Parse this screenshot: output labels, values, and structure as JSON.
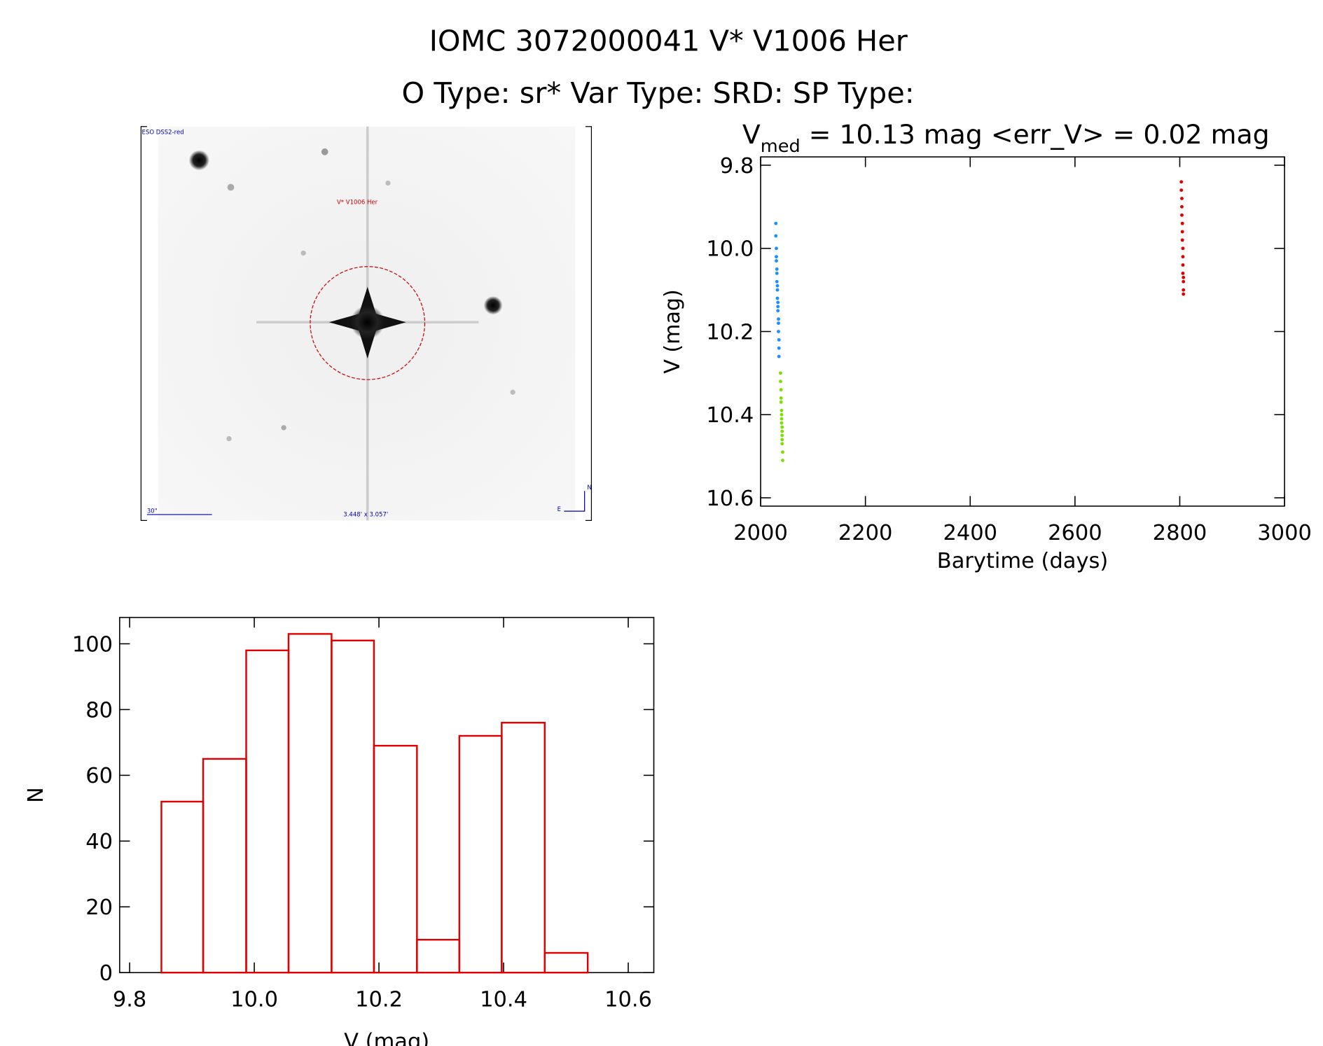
{
  "title": "IOMC 3072000041    V* V1006 Her",
  "subtitle": "O Type: sr*  Var Type: SRD:  SP Type:",
  "finder_chart": {
    "survey": "ESO DSS2-red",
    "target": "V* V1006 Her",
    "scale": "30\"",
    "field": "3.448' x 3.057'",
    "north": "N",
    "east": "E"
  },
  "chart_data": [
    {
      "type": "scatter",
      "title_main": "V",
      "title_sub": "med",
      "title_rest": " = 10.13 mag <err_V> = 0.02 mag",
      "xlabel": "Barytime (days)",
      "ylabel": "V (mag)",
      "xlim": [
        2000,
        3000
      ],
      "ylim": [
        10.62,
        9.78
      ],
      "xticks": [
        2000,
        2200,
        2400,
        2600,
        2800,
        3000
      ],
      "yticks": [
        9.8,
        {
          "value": 10,
          "label": "10.0"
        },
        10.2,
        10.4,
        10.6
      ],
      "series": [
        {
          "color": "#1e8fff",
          "x": [
            2029,
            2029,
            2030,
            2030,
            2030,
            2031,
            2031,
            2031,
            2032,
            2032,
            2032,
            2033,
            2033,
            2033,
            2034,
            2034,
            2034,
            2035,
            2035,
            2035
          ],
          "values": [
            9.94,
            9.97,
            10.0,
            10.02,
            10.03,
            10.05,
            10.06,
            10.08,
            10.09,
            10.1,
            10.12,
            10.13,
            10.14,
            10.15,
            10.17,
            10.18,
            10.2,
            10.22,
            10.24,
            10.26
          ]
        },
        {
          "color": "#7ee000",
          "x": [
            2038,
            2038,
            2039,
            2039,
            2039,
            2040,
            2040,
            2040,
            2040,
            2041,
            2041,
            2041,
            2041,
            2041,
            2042,
            2042
          ],
          "values": [
            10.3,
            10.32,
            10.34,
            10.36,
            10.37,
            10.39,
            10.4,
            10.41,
            10.42,
            10.43,
            10.44,
            10.45,
            10.46,
            10.47,
            10.49,
            10.51
          ]
        },
        {
          "color": "#e00000",
          "x": [
            2803,
            2803,
            2804,
            2804,
            2804,
            2805,
            2805,
            2805,
            2806,
            2806,
            2806,
            2806,
            2807,
            2807,
            2807,
            2807
          ],
          "values": [
            9.84,
            9.86,
            9.88,
            9.9,
            9.92,
            9.94,
            9.96,
            9.98,
            10.0,
            10.02,
            10.04,
            10.06,
            10.07,
            10.08,
            10.1,
            10.11
          ]
        }
      ]
    },
    {
      "type": "histogram",
      "xlabel": "V (mag)",
      "ylabel": "N",
      "color": "#e00000",
      "bins": [
        9.851,
        9.918,
        9.987,
        10.055,
        10.124,
        10.192,
        10.261,
        10.329,
        10.397,
        10.466,
        10.535
      ],
      "values": [
        52,
        65,
        98,
        103,
        101,
        69,
        10,
        72,
        76,
        6
      ],
      "xlim": [
        9.784,
        10.641
      ],
      "ylim": [
        0,
        108
      ],
      "xticks": [
        9.8,
        {
          "value": 10,
          "label": "10.0"
        },
        10.2,
        10.4,
        10.6
      ],
      "yticks": [
        0,
        20,
        40,
        60,
        80,
        100
      ]
    }
  ]
}
